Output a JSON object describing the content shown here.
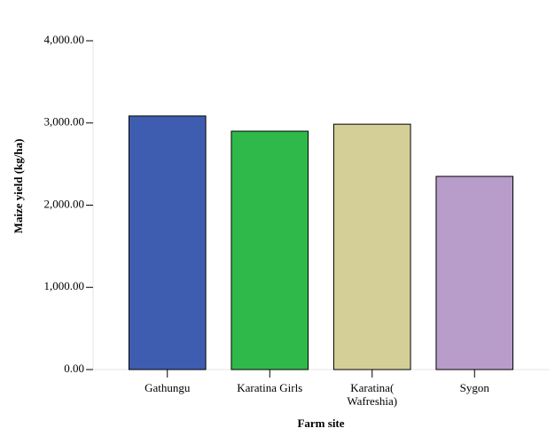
{
  "chart_data": {
    "type": "bar",
    "x_label": "Farm site",
    "y_label": "Maize yield  (kg/ha)",
    "categories": [
      "Gathungu",
      "Karatina Girls",
      "Karatina( Wafreshia)",
      "Sygon"
    ],
    "values": [
      3085,
      2900,
      2985,
      2350
    ],
    "colors": [
      "#3f5db0",
      "#2eb94a",
      "#d3cf97",
      "#b89cca"
    ],
    "ylim": [
      0,
      4000
    ],
    "yticks": [
      {
        "value": 0,
        "label": "0.00"
      },
      {
        "value": 1000,
        "label": "1,000.00"
      },
      {
        "value": 2000,
        "label": "2,000.00"
      },
      {
        "value": 3000,
        "label": "3,000.00"
      },
      {
        "value": 4000,
        "label": "4,000.00"
      }
    ],
    "grid": false
  }
}
